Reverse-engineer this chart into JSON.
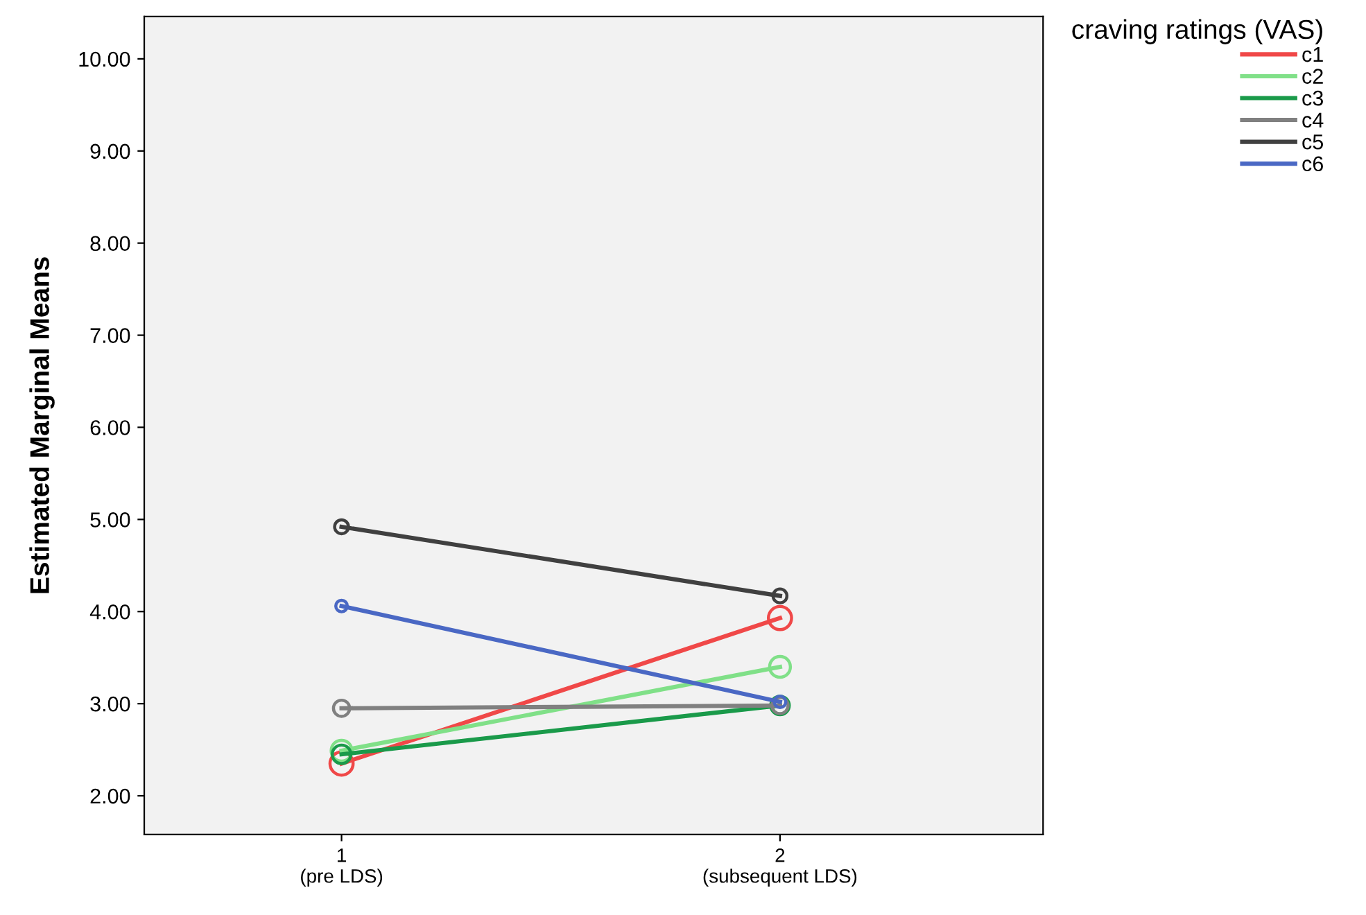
{
  "chart_data": {
    "type": "line",
    "ylabel": "Estimated Marginal Means",
    "legend_title": "craving ratings (VAS)",
    "categories": [
      "1\n(pre LDS)",
      "2\n(subsequent LDS)"
    ],
    "series": [
      {
        "name": "c1",
        "color": "#f04848",
        "values": [
          2.35,
          3.93
        ]
      },
      {
        "name": "c2",
        "color": "#80e088",
        "values": [
          2.49,
          3.4
        ]
      },
      {
        "name": "c3",
        "color": "#1a9a4a",
        "values": [
          2.45,
          2.98
        ]
      },
      {
        "name": "c4",
        "color": "#808080",
        "values": [
          2.95,
          2.98
        ]
      },
      {
        "name": "c5",
        "color": "#404040",
        "values": [
          4.92,
          4.17
        ]
      },
      {
        "name": "c6",
        "color": "#4a68c4",
        "values": [
          4.06,
          3.02
        ]
      }
    ],
    "ylim": [
      1.58,
      10.46
    ],
    "yticks": [
      {
        "value": 2,
        "label": "2.00"
      },
      {
        "value": 3,
        "label": "3.00"
      },
      {
        "value": 4,
        "label": "4.00"
      },
      {
        "value": 5,
        "label": "5.00"
      },
      {
        "value": 6,
        "label": "6.00"
      },
      {
        "value": 7,
        "label": "7.00"
      },
      {
        "value": 8,
        "label": "8.00"
      },
      {
        "value": 9,
        "label": "9.00"
      },
      {
        "value": 10,
        "label": "10.00"
      }
    ],
    "marker": "circle",
    "line_style": "solid",
    "grid": false,
    "legend": "top right"
  }
}
